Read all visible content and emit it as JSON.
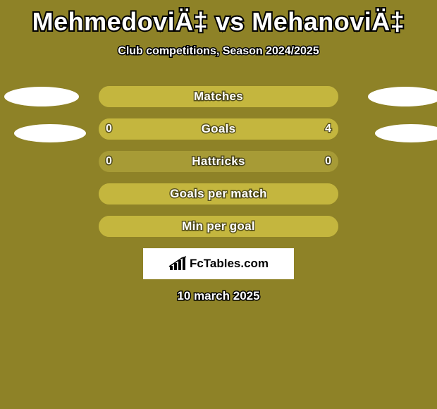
{
  "background_color": "#8e8227",
  "title": {
    "text": "MehmedoviÄ‡ vs MehanoviÄ‡",
    "color": "#ffffff",
    "fontsize": 36
  },
  "subtitle": {
    "text": "Club competitions, Season 2024/2025",
    "color": "#ffffff",
    "fontsize": 16
  },
  "avatar_placeholder_color": "#ffffff",
  "bars": {
    "bg_color": "#a79b36",
    "highlight_color": "#c4b63e",
    "text_color": "#ffffff",
    "items": [
      {
        "label": "Matches",
        "left": null,
        "right": null,
        "left_pct": 0,
        "right_pct": 0,
        "full": true
      },
      {
        "label": "Goals",
        "left": "0",
        "right": "4",
        "left_pct": 18,
        "right_pct": 82,
        "full": false
      },
      {
        "label": "Hattricks",
        "left": "0",
        "right": "0",
        "left_pct": 0,
        "right_pct": 0,
        "full": false
      },
      {
        "label": "Goals per match",
        "left": null,
        "right": null,
        "left_pct": 0,
        "right_pct": 0,
        "full": true
      },
      {
        "label": "Min per goal",
        "left": null,
        "right": null,
        "left_pct": 0,
        "right_pct": 0,
        "full": true
      }
    ]
  },
  "logo": {
    "box_color": "#ffffff",
    "text": "FcTables.com",
    "text_color": "#000000"
  },
  "date": {
    "text": "10 march 2025",
    "color": "#ffffff"
  }
}
